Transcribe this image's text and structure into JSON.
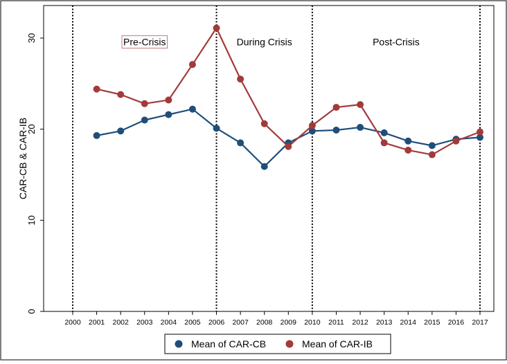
{
  "chart_data": {
    "type": "line",
    "ylabel": "CAR-CB & CAR-IB",
    "xlabel": "",
    "title": "",
    "x": [
      2001,
      2002,
      2003,
      2004,
      2005,
      2006,
      2007,
      2008,
      2009,
      2010,
      2011,
      2012,
      2013,
      2014,
      2015,
      2016,
      2017
    ],
    "x_ticks": [
      "2000",
      "2001",
      "2002",
      "2003",
      "2004",
      "2005",
      "2006",
      "2007",
      "2008",
      "2009",
      "2010",
      "2011",
      "2012",
      "2013",
      "2014",
      "2015",
      "2016",
      "2017"
    ],
    "xlim": [
      2000,
      2017
    ],
    "ylim": [
      0,
      32
    ],
    "y_ticks": [
      0,
      10,
      20,
      30
    ],
    "grid": false,
    "legend_position": "bottom",
    "series": [
      {
        "name": "Mean of CAR-CB",
        "color": "#1f4e79",
        "values": [
          19.3,
          19.8,
          21.0,
          21.6,
          22.2,
          20.1,
          18.5,
          15.9,
          18.5,
          19.8,
          19.9,
          20.2,
          19.6,
          18.7,
          18.2,
          18.9,
          19.1
        ]
      },
      {
        "name": "Mean of CAR-IB",
        "color": "#a33a3a",
        "values": [
          24.4,
          23.8,
          22.8,
          23.2,
          27.1,
          31.1,
          25.5,
          20.6,
          18.1,
          20.4,
          22.4,
          22.7,
          18.5,
          17.7,
          17.2,
          18.7,
          19.7
        ]
      }
    ],
    "vertical_lines": [
      2000,
      2006,
      2010,
      2017
    ],
    "annotations": [
      {
        "text": "Pre-Crisis",
        "x": 2003,
        "y": 29.5,
        "boxed": true
      },
      {
        "text": "During Crisis",
        "x": 2008,
        "y": 29.5,
        "boxed": false
      },
      {
        "text": "Post-Crisis",
        "x": 2013.5,
        "y": 29.5,
        "boxed": false
      }
    ]
  }
}
